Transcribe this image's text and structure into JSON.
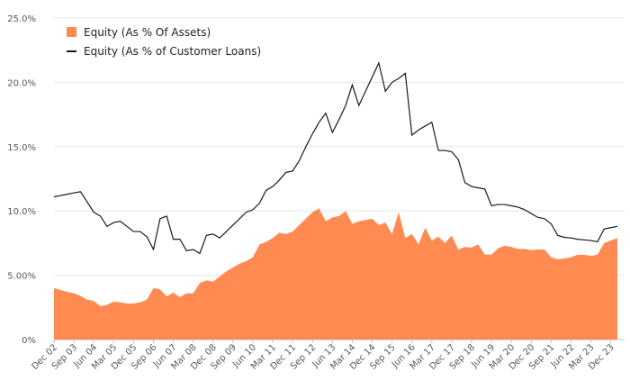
{
  "chart_data": {
    "type": "area",
    "colors": {
      "area": "#ff8b52",
      "line": "#1a1a1a",
      "grid": "#e6e6e6",
      "text": "#595959"
    },
    "ylim": [
      0,
      25
    ],
    "yticks": [
      0,
      5,
      10,
      15,
      20,
      25
    ],
    "ytick_labels": [
      "0%",
      "5.00%",
      "10.0%",
      "15.0%",
      "20.0%",
      "25.0%"
    ],
    "grid": true,
    "legend": "top-left",
    "x": [
      "Dec 02",
      "Mar 03",
      "Jun 03",
      "Sep 03",
      "Dec 03",
      "Mar 04",
      "Jun 04",
      "Sep 04",
      "Dec 04",
      "Mar 05",
      "Jun 05",
      "Sep 05",
      "Dec 05",
      "Mar 06",
      "Jun 06",
      "Sep 06",
      "Dec 06",
      "Mar 07",
      "Jun 07",
      "Sep 07",
      "Dec 07",
      "Mar 08",
      "Jun 08",
      "Sep 08",
      "Dec 08",
      "Mar 09",
      "Jun 09",
      "Sep 09",
      "Dec 09",
      "Mar 10",
      "Jun 10",
      "Sep 10",
      "Dec 10",
      "Mar 11",
      "Jun 11",
      "Sep 11",
      "Dec 11",
      "Mar 12",
      "Jun 12",
      "Sep 12",
      "Dec 12",
      "Mar 13",
      "Jun 13",
      "Sep 13",
      "Dec 13",
      "Mar 14",
      "Jun 14",
      "Sep 14",
      "Dec 14",
      "Mar 15",
      "Jun 15",
      "Sep 15",
      "Dec 15",
      "Mar 16",
      "Jun 16",
      "Sep 16",
      "Dec 16",
      "Mar 17",
      "Jun 17",
      "Sep 17",
      "Dec 17",
      "Mar 18",
      "Jun 18",
      "Sep 18",
      "Dec 18",
      "Mar 19",
      "Jun 19",
      "Sep 19",
      "Dec 19",
      "Mar 20",
      "Jun 20",
      "Sep 20",
      "Dec 20",
      "Mar 21",
      "Jun 21",
      "Sep 21",
      "Dec 21",
      "Mar 22",
      "Jun 22",
      "Sep 22",
      "Dec 22",
      "Mar 23",
      "Jun 23",
      "Sep 23",
      "Dec 23",
      "Mar 24"
    ],
    "xtick_labels": [
      "Dec 02",
      "Sep 03",
      "Jun 04",
      "Mar 05",
      "Dec 05",
      "Sep 06",
      "Jun 07",
      "Mar 08",
      "Dec 08",
      "Sep 09",
      "Jun 10",
      "Mar 11",
      "Dec 11",
      "Sep 12",
      "Jun 13",
      "Mar 14",
      "Dec 14",
      "Sep 15",
      "Jun 16",
      "Mar 17",
      "Dec 17",
      "Sep 18",
      "Jun 19",
      "Mar 20",
      "Dec 20",
      "Sep 21",
      "Jun 22",
      "Mar 23",
      "Dec 23"
    ],
    "series": [
      {
        "name": "Equity (As % Of Assets)",
        "kind": "area",
        "values": [
          4.0,
          3.85,
          3.7,
          3.6,
          3.4,
          3.1,
          3.0,
          2.6,
          2.7,
          2.95,
          2.9,
          2.8,
          2.8,
          2.9,
          3.1,
          4.0,
          3.9,
          3.35,
          3.65,
          3.3,
          3.6,
          3.6,
          4.4,
          4.6,
          4.5,
          4.9,
          5.3,
          5.6,
          5.9,
          6.1,
          6.4,
          7.4,
          7.6,
          7.9,
          8.3,
          8.2,
          8.4,
          8.9,
          9.4,
          9.9,
          10.2,
          9.2,
          9.5,
          9.6,
          10.0,
          9.0,
          9.2,
          9.3,
          9.4,
          8.9,
          9.1,
          8.2,
          9.9,
          7.9,
          8.2,
          7.4,
          8.7,
          7.7,
          8.0,
          7.5,
          8.1,
          7.0,
          7.2,
          7.15,
          7.4,
          6.6,
          6.6,
          7.1,
          7.3,
          7.2,
          7.05,
          7.05,
          6.95,
          7.0,
          7.0,
          6.4,
          6.25,
          6.3,
          6.4,
          6.6,
          6.6,
          6.5,
          6.6,
          7.5,
          7.7,
          7.9
        ]
      },
      {
        "name": "Equity (As % of Customer Loans)",
        "kind": "line",
        "values": [
          11.1,
          11.2,
          11.3,
          11.4,
          11.5,
          10.7,
          9.9,
          9.6,
          8.8,
          9.1,
          9.2,
          8.8,
          8.4,
          8.4,
          8.0,
          7.0,
          9.4,
          9.6,
          7.8,
          7.8,
          6.9,
          7.0,
          6.7,
          8.1,
          8.2,
          7.9,
          8.4,
          8.9,
          9.4,
          9.9,
          10.1,
          10.6,
          11.6,
          11.9,
          12.4,
          13.0,
          13.1,
          13.9,
          15.0,
          16.0,
          16.9,
          17.6,
          16.1,
          17.1,
          18.2,
          19.8,
          18.2,
          19.3,
          20.4,
          21.5,
          19.3,
          20.0,
          20.3,
          20.7,
          15.9,
          16.3,
          16.6,
          16.9,
          14.7,
          14.7,
          14.6,
          14.0,
          12.2,
          11.9,
          11.8,
          11.7,
          10.4,
          10.5,
          10.5,
          10.4,
          10.3,
          10.1,
          9.8,
          9.5,
          9.4,
          9.0,
          8.1,
          7.95,
          7.9,
          7.8,
          7.75,
          7.7,
          7.6,
          8.6,
          8.7,
          8.8
        ]
      }
    ]
  }
}
